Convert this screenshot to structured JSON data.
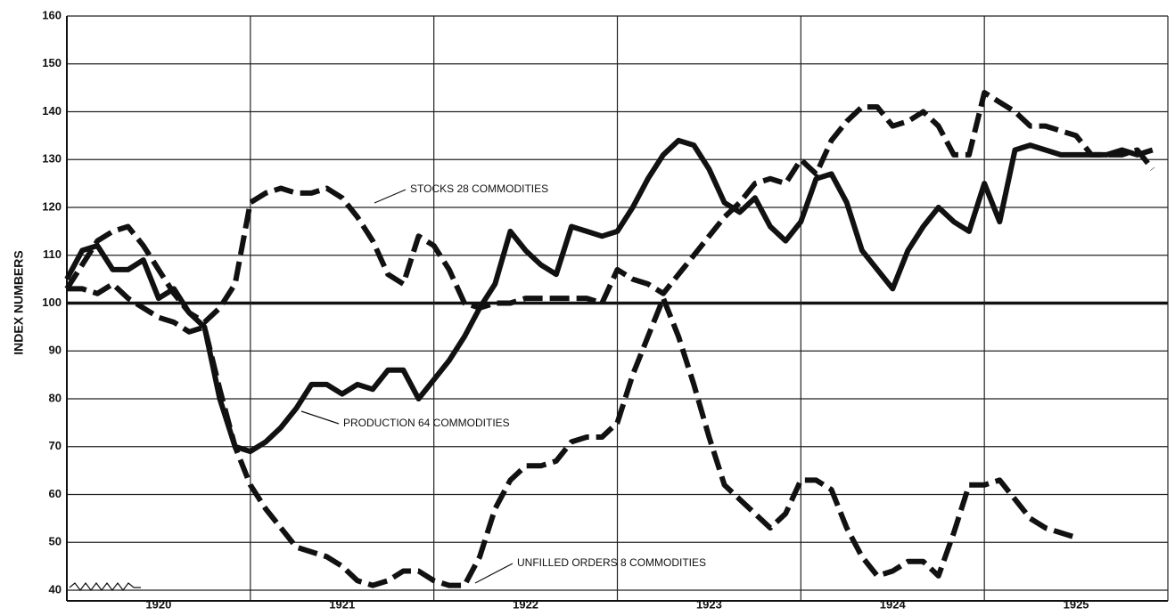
{
  "chart_data": {
    "type": "line",
    "y_label": "INDEX NUMBERS",
    "categories": [
      "1920",
      null,
      null,
      null,
      null,
      null,
      null,
      null,
      null,
      null,
      null,
      null,
      "1921",
      null,
      null,
      null,
      null,
      null,
      null,
      null,
      null,
      null,
      null,
      null,
      "1922",
      null,
      null,
      null,
      null,
      null,
      null,
      null,
      null,
      null,
      null,
      null,
      "1923",
      null,
      null,
      null,
      null,
      null,
      null,
      null,
      null,
      null,
      null,
      null,
      "1924",
      null,
      null,
      null,
      null,
      null,
      null,
      null,
      null,
      null,
      null,
      null,
      "1925",
      null,
      null,
      null,
      null,
      null,
      null,
      null,
      null,
      null,
      null,
      null
    ],
    "series": [
      {
        "name": "PRODUCTION 64 COMMODITIES",
        "color": "#111111",
        "style": "solid",
        "values": [
          105,
          111,
          112,
          107,
          107,
          109,
          101,
          103,
          98,
          95,
          80,
          70,
          69,
          71,
          74,
          78,
          83,
          83,
          81,
          83,
          82,
          86,
          86,
          80,
          84,
          88,
          93,
          99,
          104,
          115,
          111,
          108,
          106,
          116,
          115,
          114,
          115,
          120,
          126,
          131,
          134,
          133,
          128,
          121,
          119,
          122,
          116,
          113,
          117,
          126,
          127,
          121,
          111,
          107,
          103,
          111,
          116,
          120,
          117,
          115,
          125,
          117,
          132,
          133,
          132,
          131,
          131,
          131,
          131,
          132,
          131,
          132
        ]
      },
      {
        "name": "STOCKS 28 COMMODITIES",
        "color": "#111111",
        "style": "dashed",
        "values": [
          103,
          108,
          113,
          115,
          116,
          112,
          107,
          102,
          98,
          96,
          99,
          104,
          121,
          123,
          124,
          123,
          123,
          124,
          122,
          118,
          113,
          106,
          104,
          114,
          112,
          107,
          100,
          99,
          100,
          100,
          101,
          101,
          101,
          101,
          101,
          100,
          107,
          105,
          104,
          102,
          106,
          110,
          114,
          118,
          121,
          125,
          126,
          125,
          130,
          127,
          134,
          138,
          141,
          141,
          137,
          138,
          140,
          137,
          131,
          131,
          144,
          142,
          140,
          137,
          137,
          136,
          135,
          131,
          131,
          131,
          132,
          128
        ]
      },
      {
        "name": "UNFILLED ORDERS 8 COMMODITIES",
        "color": "#111111",
        "style": "dashed",
        "values": [
          103,
          103,
          102,
          104,
          101,
          99,
          97,
          96,
          94,
          95,
          82,
          70,
          62,
          57,
          53,
          49,
          48,
          47,
          45,
          42,
          41,
          42,
          44,
          44,
          42,
          41,
          41,
          47,
          57,
          63,
          66,
          66,
          67,
          71,
          72,
          72,
          75,
          85,
          93,
          101,
          93,
          83,
          72,
          62,
          59,
          56,
          53,
          56,
          63,
          63,
          61,
          53,
          47,
          43,
          44,
          46,
          46,
          43,
          52,
          62,
          62,
          63,
          59,
          55,
          53,
          52,
          51,
          null,
          null,
          null,
          null,
          null
        ]
      }
    ],
    "ylim": [
      40,
      160
    ],
    "yticks": [
      40,
      50,
      60,
      70,
      80,
      90,
      100,
      110,
      120,
      130,
      140,
      150,
      160
    ],
    "reference_line": 100,
    "grid": true
  }
}
